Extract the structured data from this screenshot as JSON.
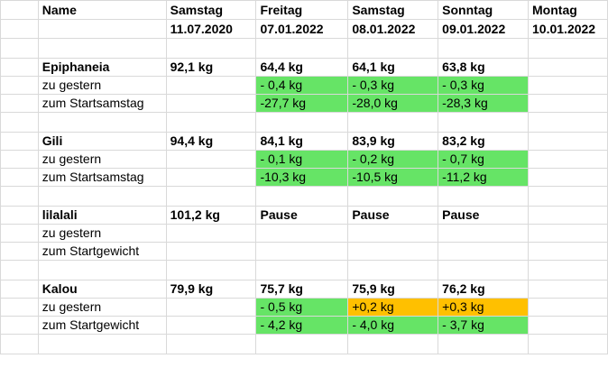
{
  "header": {
    "name_label": "Name",
    "columns": [
      {
        "day": "Samstag",
        "date": "11.07.2020"
      },
      {
        "day": "Freitag",
        "date": "07.01.2022"
      },
      {
        "day": "Samstag",
        "date": "08.01.2022"
      },
      {
        "day": "Sonntag",
        "date": "09.01.2022"
      },
      {
        "day": "Montag",
        "date": "10.01.2022"
      }
    ]
  },
  "colors": {
    "improved": "#66e466",
    "worse": "#ffc000",
    "grid": "#d9d9d9"
  },
  "groups": [
    {
      "name": "Epiphaneia",
      "weights": [
        "92,1 kg",
        "64,4 kg",
        "64,1 kg",
        "63,8 kg",
        ""
      ],
      "row2_label": "zu gestern",
      "row2": [
        "",
        "- 0,4 kg",
        "- 0,3 kg",
        "- 0,3 kg",
        ""
      ],
      "row3_label": "zum Startsamstag",
      "row3": [
        "",
        "-27,7 kg",
        "-28,0 kg",
        "-28,3 kg",
        ""
      ]
    },
    {
      "name": "Gili",
      "weights": [
        "94,4 kg",
        "84,1 kg",
        "83,9 kg",
        "83,2 kg",
        ""
      ],
      "row2_label": "zu gestern",
      "row2": [
        "",
        "- 0,1 kg",
        "- 0,2 kg",
        "- 0,7 kg",
        ""
      ],
      "row3_label": "zum Startsamstag",
      "row3": [
        "",
        "-10,3 kg",
        "-10,5 kg",
        "-11,2 kg",
        ""
      ]
    },
    {
      "name": "lilalali",
      "weights": [
        "101,2 kg",
        "Pause",
        "Pause",
        "Pause",
        ""
      ],
      "row2_label": "zu gestern",
      "row2": [
        "",
        "",
        "",
        "",
        ""
      ],
      "row3_label": "zum Startgewicht",
      "row3": [
        "",
        "",
        "",
        "",
        ""
      ]
    },
    {
      "name": "Kalou",
      "weights": [
        "79,9 kg",
        "75,7 kg",
        "75,9 kg",
        "76,2 kg",
        ""
      ],
      "row2_label": "zu gestern",
      "row2": [
        "",
        "- 0,5 kg",
        "+0,2 kg",
        "+0,3 kg",
        ""
      ],
      "row3_label": "zum Startgewicht",
      "row3": [
        "",
        "- 4,2 kg",
        "- 4,0 kg",
        "- 3,7 kg",
        ""
      ]
    }
  ]
}
